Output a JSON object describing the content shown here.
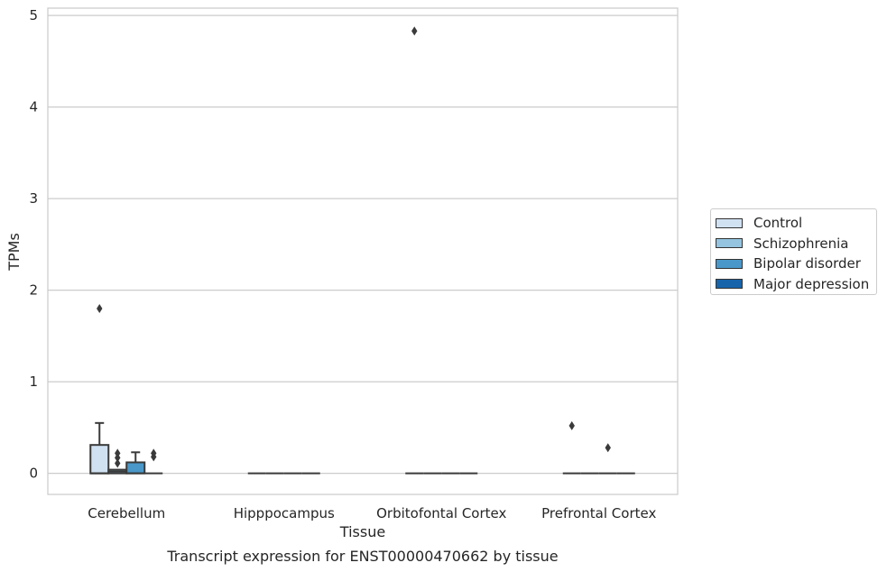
{
  "chart_data": {
    "type": "box",
    "title": "Transcript expression for ENST00000470662 by tissue",
    "xlabel": "Tissue",
    "ylabel": "TPMs",
    "ylim": [
      -0.23,
      5.08
    ],
    "yticks": [
      0,
      1,
      2,
      3,
      4,
      5
    ],
    "grid": true,
    "legend_position": "right",
    "categories": [
      "Cerebellum",
      "Hipppocampus",
      "Orbitofontal Cortex",
      "Prefrontal Cortex"
    ],
    "series": [
      {
        "name": "Control",
        "color": "#d0e1f2",
        "boxes": [
          {
            "q1": 0,
            "median": 0,
            "q3": 0.31,
            "whisker_low": 0,
            "whisker_high": 0.55,
            "outliers": [
              1.8
            ]
          },
          {
            "q1": 0,
            "median": 0,
            "q3": 0,
            "whisker_low": 0,
            "whisker_high": 0,
            "outliers": []
          },
          {
            "q1": 0,
            "median": 0,
            "q3": 0,
            "whisker_low": 0,
            "whisker_high": 0,
            "outliers": [
              4.83
            ]
          },
          {
            "q1": 0,
            "median": 0,
            "q3": 0,
            "whisker_low": 0,
            "whisker_high": 0,
            "outliers": [
              0.52
            ]
          }
        ]
      },
      {
        "name": "Schizophrenia",
        "color": "#94c4df",
        "boxes": [
          {
            "q1": 0,
            "median": 0.02,
            "q3": 0.04,
            "whisker_low": 0,
            "whisker_high": 0.04,
            "outliers": [
              0.11,
              0.17,
              0.22
            ]
          },
          {
            "q1": 0,
            "median": 0,
            "q3": 0,
            "whisker_low": 0,
            "whisker_high": 0,
            "outliers": []
          },
          {
            "q1": 0,
            "median": 0,
            "q3": 0,
            "whisker_low": 0,
            "whisker_high": 0,
            "outliers": []
          },
          {
            "q1": 0,
            "median": 0,
            "q3": 0,
            "whisker_low": 0,
            "whisker_high": 0,
            "outliers": []
          }
        ]
      },
      {
        "name": "Bipolar disorder",
        "color": "#4a98c9",
        "boxes": [
          {
            "q1": 0,
            "median": 0,
            "q3": 0.12,
            "whisker_low": 0,
            "whisker_high": 0.23,
            "outliers": []
          },
          {
            "q1": 0,
            "median": 0,
            "q3": 0,
            "whisker_low": 0,
            "whisker_high": 0,
            "outliers": []
          },
          {
            "q1": 0,
            "median": 0,
            "q3": 0,
            "whisker_low": 0,
            "whisker_high": 0,
            "outliers": []
          },
          {
            "q1": 0,
            "median": 0,
            "q3": 0,
            "whisker_low": 0,
            "whisker_high": 0,
            "outliers": [
              0.28
            ]
          }
        ]
      },
      {
        "name": "Major depression",
        "color": "#1764ab",
        "boxes": [
          {
            "q1": 0,
            "median": 0,
            "q3": 0,
            "whisker_low": 0,
            "whisker_high": 0,
            "outliers": [
              0.18,
              0.22
            ]
          },
          {
            "q1": 0,
            "median": 0,
            "q3": 0,
            "whisker_low": 0,
            "whisker_high": 0,
            "outliers": []
          },
          {
            "q1": 0,
            "median": 0,
            "q3": 0,
            "whisker_low": 0,
            "whisker_high": 0,
            "outliers": []
          },
          {
            "q1": 0,
            "median": 0,
            "q3": 0,
            "whisker_low": 0,
            "whisker_high": 0,
            "outliers": []
          }
        ]
      }
    ]
  }
}
